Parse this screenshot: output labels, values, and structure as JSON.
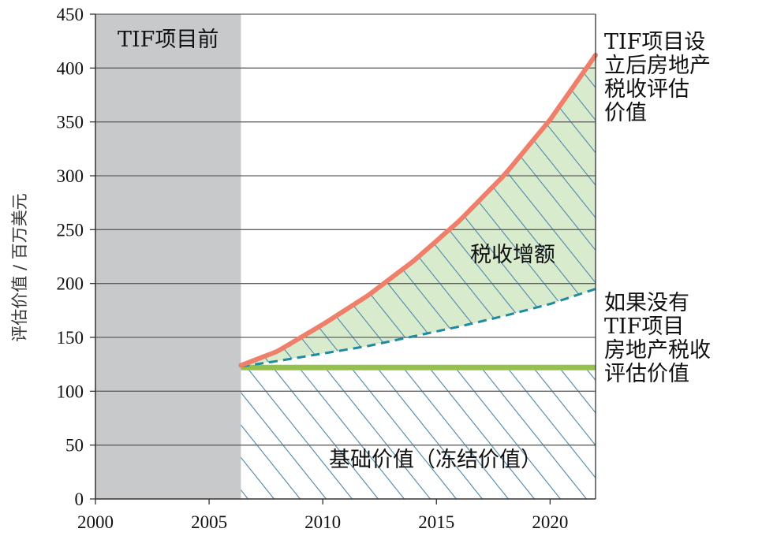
{
  "chart_data": {
    "type": "area",
    "ylabel": "评估价值 / 百万美元",
    "xlabel": "",
    "title": "",
    "xlim": [
      2000,
      2022
    ],
    "ylim": [
      0,
      450
    ],
    "x_ticks": [
      2000,
      2005,
      2010,
      2015,
      2020
    ],
    "y_ticks": [
      0,
      50,
      100,
      150,
      200,
      250,
      300,
      350,
      400,
      450
    ],
    "grid": "horizontal",
    "pre_tif_region": {
      "x_start": 2000,
      "x_end": 2006.4,
      "label": "TIF项目前"
    },
    "series": [
      {
        "name": "TIF项目设立后房地产税收评估价值",
        "style": "solid",
        "color": "#ef7e6a",
        "x": [
          2006.4,
          2008,
          2010,
          2012,
          2014,
          2016,
          2018,
          2020,
          2022
        ],
        "values": [
          124,
          137,
          162,
          189,
          221,
          258,
          301,
          352,
          412
        ]
      },
      {
        "name": "如果没有TIF项目房地产税收评估价值",
        "style": "dashed",
        "color": "#1f8aa0",
        "x": [
          2006.4,
          2008,
          2010,
          2012,
          2014,
          2016,
          2018,
          2020,
          2022
        ],
        "values": [
          123,
          128,
          135,
          142,
          151,
          160,
          170,
          181,
          195
        ]
      },
      {
        "name": "基础价值（冻结价值）",
        "style": "solid",
        "color": "#94c14b",
        "x": [
          2006.4,
          2022
        ],
        "values": [
          122,
          122
        ]
      }
    ],
    "regions": [
      {
        "label": "税收增额",
        "fill": "#d8ebcd",
        "hatch": true
      },
      {
        "label": "基础价值（冻结价值）",
        "fill": "#ffffff",
        "hatch": true
      }
    ],
    "annotations": [
      {
        "target": "actual",
        "lines": [
          "TIF项目设",
          "立后房地产",
          "税收评估",
          "价值"
        ]
      },
      {
        "target": "without",
        "lines": [
          "如果没有",
          "TIF项目",
          "房地产税收",
          "评估价值"
        ]
      }
    ]
  },
  "colors": {
    "pre_shade": "#c8c9cb",
    "grid": "#606060",
    "axis": "#333333",
    "hatch": "#5a8fb0",
    "increment_fill": "#d8ebcd"
  }
}
